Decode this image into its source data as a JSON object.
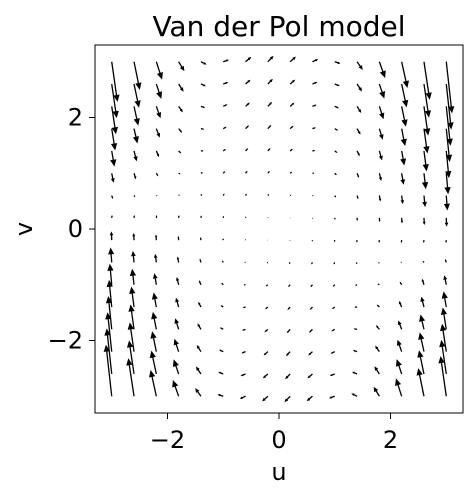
{
  "chart_data": {
    "type": "quiver",
    "title": "Van der Pol model",
    "xlabel": "u",
    "ylabel": "v",
    "xlim": [
      -3.3,
      3.3
    ],
    "ylim": [
      -3.3,
      3.3
    ],
    "x_ticks": [
      -2,
      0,
      2
    ],
    "y_ticks": [
      -2,
      0,
      2
    ],
    "x_tick_labels": [
      "−2",
      "0",
      "2"
    ],
    "y_tick_labels": [
      "−2",
      "0",
      "2"
    ],
    "grid": false,
    "field": {
      "u_grid": {
        "start": -3,
        "stop": 3,
        "count": 16
      },
      "v_grid": {
        "start": -3,
        "stop": 3,
        "count": 16
      },
      "equation_du": "v",
      "equation_dv": "mu*(1-u^2)*v - u",
      "mu": 1,
      "arrow_color": "#000000"
    }
  }
}
